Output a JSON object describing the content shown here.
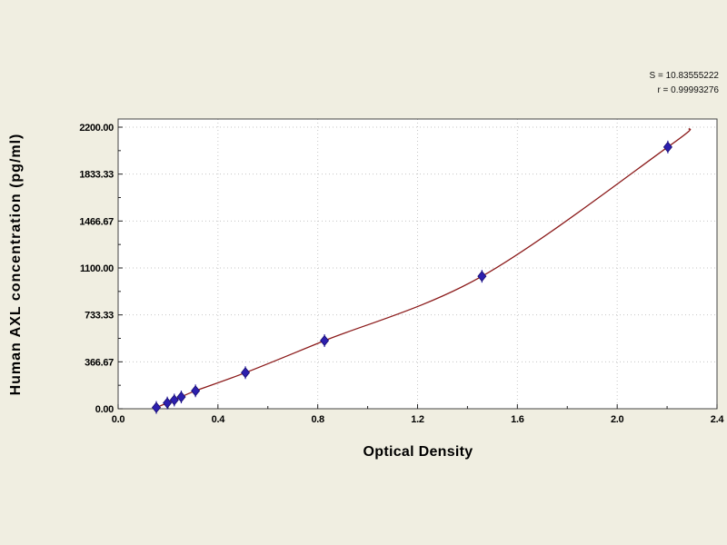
{
  "colors": {
    "background": "#f0eee1",
    "plot_background": "#ffffff",
    "plot_border": "#444444",
    "grid": "#c6c6c6",
    "curve": "#8b1a1a",
    "marker": "#2d1fae",
    "marker_edge": "#150c6e",
    "text": "#000000"
  },
  "chart_data": {
    "type": "scatter",
    "title": "",
    "xlabel": "Optical Density",
    "ylabel": "Human AXL concentration (pg/ml)",
    "xlim": [
      0.0,
      2.4
    ],
    "ylim": [
      0,
      2200
    ],
    "grid": "dotted",
    "legend_position": "none",
    "x_tick_values": [
      0.0,
      0.4,
      0.8,
      1.2,
      1.6,
      2.0,
      2.4
    ],
    "x_tick_labels": [
      "0.0",
      "0.4",
      "0.8",
      "1.2",
      "1.6",
      "2.0",
      "2.4"
    ],
    "y_tick_values": [
      0,
      366.67,
      733.33,
      1100,
      1466.67,
      1833.33,
      2200
    ],
    "y_tick_labels": [
      "0.00",
      "366.67",
      "733.33",
      "1100.00",
      "1466.67",
      "1833.33",
      "2200.00"
    ],
    "series": [
      {
        "name": "standard-points",
        "type": "scatter",
        "marker": "diamond",
        "color": "#2d1fae",
        "points": [
          [
            0.153,
            10
          ],
          [
            0.197,
            45
          ],
          [
            0.225,
            68
          ],
          [
            0.253,
            92
          ],
          [
            0.31,
            140
          ],
          [
            0.51,
            282
          ],
          [
            0.827,
            532
          ],
          [
            1.458,
            1035
          ],
          [
            2.203,
            2045
          ]
        ]
      },
      {
        "name": "fit-curve",
        "type": "line",
        "color": "#8b1a1a",
        "extends_to": [
          2.29,
          2190
        ]
      }
    ],
    "annotations": [
      "S = 10.83555222",
      "r = 0.99993276"
    ]
  }
}
